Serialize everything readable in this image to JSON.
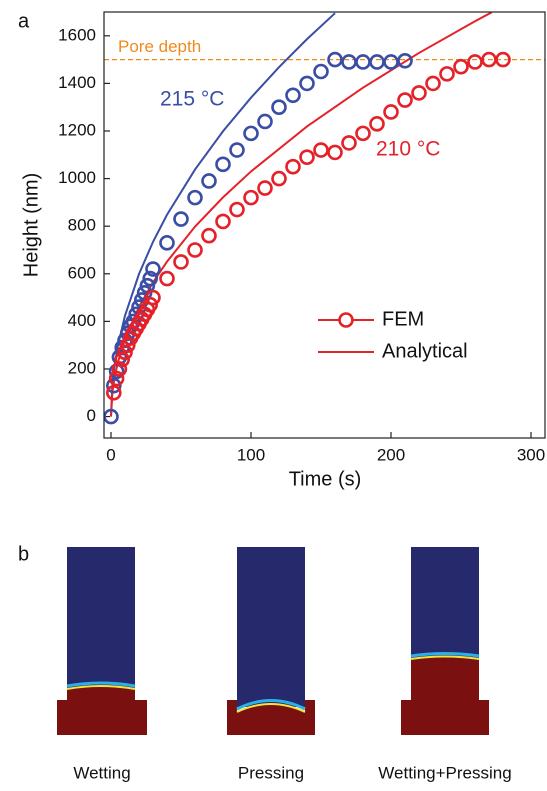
{
  "chart_data": {
    "type": "line",
    "panel_label": "a",
    "xlabel": "Time (s)",
    "ylabel": "Height  (nm)",
    "xlim": [
      -5,
      310
    ],
    "ylim": [
      -90,
      1700
    ],
    "xticks": [
      0,
      100,
      200,
      300
    ],
    "yticks": [
      0,
      200,
      400,
      600,
      800,
      1000,
      1200,
      1400,
      1600
    ],
    "reference_line": {
      "value": 1500,
      "label": "Pore depth",
      "color": "#f08a1c"
    },
    "series": [
      {
        "name": "FEM",
        "label": "215 °C",
        "color": "#3a4ea6",
        "style": "markers",
        "in_legend": false,
        "x": [
          0,
          2,
          4,
          6,
          8,
          10,
          12,
          14,
          16,
          18,
          20,
          22,
          24,
          26,
          28,
          30,
          40,
          50,
          60,
          70,
          80,
          90,
          100,
          110,
          120,
          130,
          140,
          150,
          160,
          170,
          180,
          190,
          200,
          210
        ],
        "values": [
          0,
          130,
          190,
          250,
          290,
          320,
          350,
          380,
          400,
          430,
          460,
          490,
          520,
          550,
          580,
          620,
          730,
          830,
          920,
          990,
          1060,
          1120,
          1190,
          1240,
          1300,
          1350,
          1400,
          1450,
          1500,
          1490,
          1490,
          1490,
          1490,
          1495
        ]
      },
      {
        "name": "FEM",
        "label": "210 °C",
        "color": "#e52129",
        "style": "markers",
        "in_legend": true,
        "x": [
          2,
          4,
          6,
          8,
          10,
          12,
          14,
          16,
          18,
          20,
          22,
          24,
          26,
          28,
          30,
          40,
          50,
          60,
          70,
          80,
          90,
          100,
          110,
          120,
          130,
          140,
          150,
          160,
          170,
          180,
          190,
          200,
          210,
          220,
          230,
          240,
          250,
          260,
          270,
          280
        ],
        "values": [
          100,
          160,
          200,
          240,
          270,
          300,
          330,
          350,
          370,
          390,
          410,
          430,
          450,
          470,
          500,
          580,
          650,
          700,
          760,
          820,
          870,
          920,
          960,
          1000,
          1050,
          1090,
          1120,
          1110,
          1150,
          1190,
          1230,
          1280,
          1330,
          1360,
          1400,
          1440,
          1470,
          1490,
          1500,
          1500
        ]
      },
      {
        "name": "Analytical",
        "color": "#3a4ea6",
        "style": "line",
        "in_legend": false,
        "x": [
          0,
          1,
          2.5,
          5,
          10,
          20,
          30,
          40,
          60,
          80,
          100,
          120,
          140,
          160
        ],
        "values": [
          0,
          134,
          212,
          300,
          424,
          599,
          734,
          848,
          1038,
          1199,
          1340,
          1468,
          1586,
          1695
        ]
      },
      {
        "name": "Analytical",
        "color": "#e52129",
        "style": "line",
        "in_legend": true,
        "x": [
          0,
          1,
          2.5,
          5,
          10,
          20,
          30,
          40,
          60,
          80,
          100,
          140,
          180,
          220,
          260,
          272
        ],
        "values": [
          0,
          103,
          163,
          230,
          326,
          461,
          564,
          651,
          798,
          921,
          1030,
          1219,
          1382,
          1528,
          1661,
          1699
        ]
      }
    ]
  },
  "panel_b": {
    "label": "b",
    "images": [
      {
        "caption": "Wetting"
      },
      {
        "caption": "Pressing"
      },
      {
        "caption": "Wetting+Pressing"
      }
    ]
  }
}
